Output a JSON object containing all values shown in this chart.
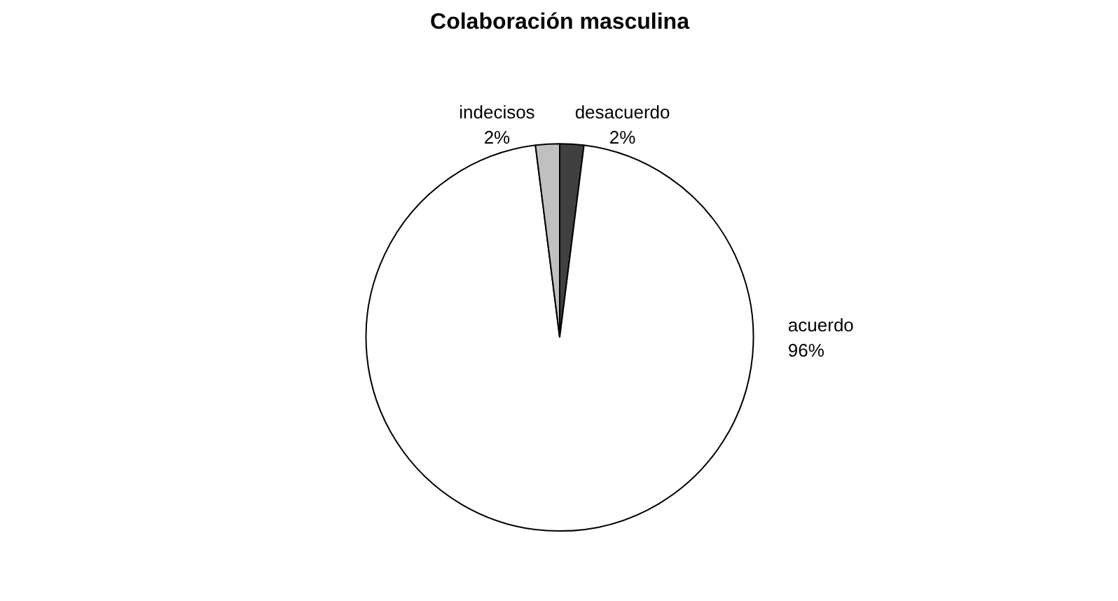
{
  "chart_data": {
    "type": "pie",
    "title": "Colaboración masculina",
    "categories": [
      "desacuerdo",
      "acuerdo",
      "indecisos"
    ],
    "values": [
      2,
      96,
      2
    ],
    "colors": [
      "#404040",
      "#ffffff",
      "#c0c0c0"
    ],
    "value_labels": [
      "2%",
      "96%",
      "2%"
    ]
  }
}
